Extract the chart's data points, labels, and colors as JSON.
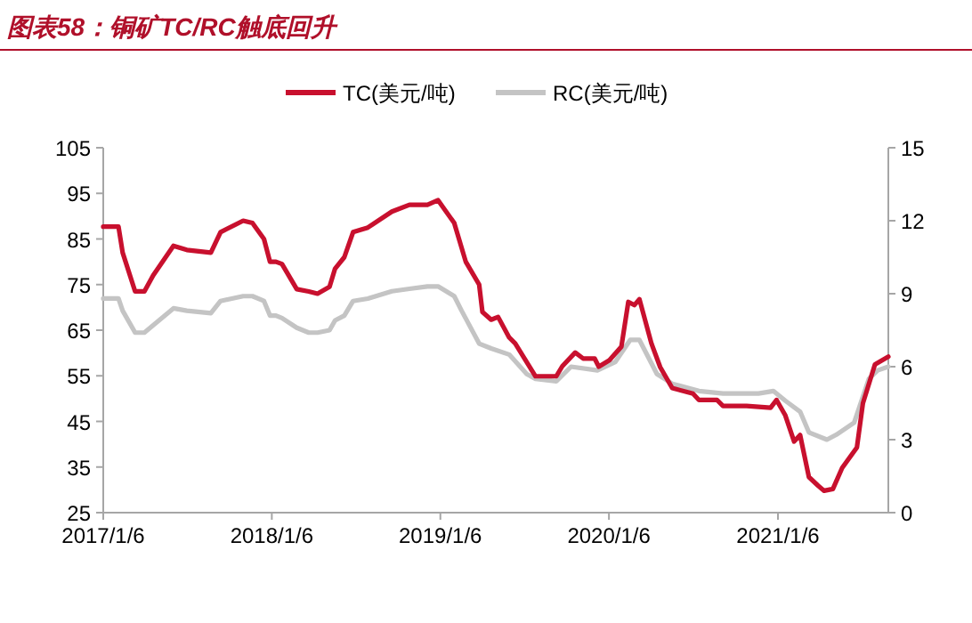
{
  "chart_data": {
    "type": "line",
    "title": "图表58：铜矿TC/RC触底回升",
    "legend": "top",
    "grid": false,
    "marker": "none",
    "line_style": "solid",
    "xlim": [
      "2017-01-06",
      "2021-09-02"
    ],
    "xticks": [
      {
        "value": "2017-01-06",
        "label": "2017/1/6"
      },
      {
        "value": "2018-01-06",
        "label": "2018/1/6"
      },
      {
        "value": "2019-01-06",
        "label": "2019/1/6"
      },
      {
        "value": "2020-01-06",
        "label": "2020/1/6"
      },
      {
        "value": "2021-01-06",
        "label": "2021/1/6"
      }
    ],
    "ylim": [
      25,
      105
    ],
    "yticks": [
      25,
      35,
      45,
      55,
      65,
      75,
      85,
      95,
      105
    ],
    "y2lim": [
      0,
      15
    ],
    "y2ticks": [
      0,
      3,
      6,
      9,
      12,
      15
    ],
    "series": [
      {
        "name": "TC(美元/吨)",
        "color": "#c8102e",
        "x": [
          "2017-01-06",
          "2017-02-08",
          "2017-02-17",
          "2017-03-16",
          "2017-04-05",
          "2017-04-24",
          "2017-06-07",
          "2017-07-06",
          "2017-08-27",
          "2017-09-17",
          "2017-11-05",
          "2017-11-25",
          "2017-12-20",
          "2018-01-02",
          "2018-01-15",
          "2018-01-28",
          "2018-03-01",
          "2018-03-27",
          "2018-04-15",
          "2018-05-11",
          "2018-05-23",
          "2018-06-12",
          "2018-07-01",
          "2018-08-02",
          "2018-09-23",
          "2018-10-31",
          "2018-12-09",
          "2019-01-01",
          "2019-02-05",
          "2019-03-02",
          "2019-03-31",
          "2019-04-07",
          "2019-04-26",
          "2019-05-11",
          "2019-06-04",
          "2019-06-17",
          "2019-07-31",
          "2019-09-14",
          "2019-09-27",
          "2019-10-25",
          "2019-11-11",
          "2019-12-06",
          "2019-12-15",
          "2020-01-07",
          "2020-02-02",
          "2020-02-17",
          "2020-03-01",
          "2020-03-12",
          "2020-04-07",
          "2020-04-26",
          "2020-05-22",
          "2020-07-06",
          "2020-07-19",
          "2020-08-27",
          "2020-09-09",
          "2020-10-30",
          "2020-12-21",
          "2021-01-03",
          "2021-01-22",
          "2021-02-10",
          "2021-02-23",
          "2021-03-14",
          "2021-04-03",
          "2021-04-16",
          "2021-05-05",
          "2021-05-25",
          "2021-06-26",
          "2021-07-09",
          "2021-08-04",
          "2021-09-02"
        ],
        "values": [
          87.7,
          87.7,
          82,
          73.5,
          73.5,
          77,
          83.5,
          82.6,
          82,
          86.5,
          89,
          88.5,
          85,
          80,
          80,
          79.5,
          74,
          73.5,
          73,
          74.5,
          78.5,
          81,
          86.5,
          87.5,
          91,
          92.5,
          92.5,
          93.5,
          88.5,
          80,
          75,
          69,
          67.3,
          67.9,
          63.4,
          62.1,
          54.9,
          54.9,
          57.1,
          60.1,
          58.8,
          58.8,
          57,
          58.4,
          61.4,
          71.2,
          70.5,
          71.8,
          62.1,
          56.9,
          52.3,
          51.1,
          49.7,
          49.7,
          48.4,
          48.4,
          48,
          49.7,
          46.3,
          40.6,
          42,
          32.8,
          30.9,
          29.8,
          30.2,
          34.8,
          39.3,
          49,
          57.5,
          59.2
        ]
      },
      {
        "name": "RC(美元/吨)",
        "color": "#c4c4c4",
        "axis": "y2",
        "x": [
          "2017-01-06",
          "2017-02-08",
          "2017-02-17",
          "2017-03-16",
          "2017-04-05",
          "2017-04-24",
          "2017-06-07",
          "2017-07-06",
          "2017-08-27",
          "2017-09-17",
          "2017-11-05",
          "2017-11-25",
          "2017-12-20",
          "2018-01-02",
          "2018-01-15",
          "2018-01-28",
          "2018-03-01",
          "2018-03-27",
          "2018-04-15",
          "2018-05-11",
          "2018-05-23",
          "2018-06-12",
          "2018-07-01",
          "2018-08-02",
          "2018-09-23",
          "2018-10-31",
          "2018-12-09",
          "2019-01-01",
          "2019-02-05",
          "2019-02-21",
          "2019-03-31",
          "2019-04-26",
          "2019-06-04",
          "2019-07-12",
          "2019-07-31",
          "2019-09-14",
          "2019-10-16",
          "2019-12-12",
          "2020-01-20",
          "2020-02-21",
          "2020-03-12",
          "2020-04-19",
          "2020-05-22",
          "2020-07-19",
          "2020-09-09",
          "2020-11-25",
          "2020-12-27",
          "2021-01-22",
          "2021-02-23",
          "2021-03-14",
          "2021-04-22",
          "2021-05-12",
          "2021-06-20",
          "2021-07-22",
          "2021-08-10",
          "2021-09-02"
        ],
        "values": [
          8.8,
          8.8,
          8.3,
          7.4,
          7.4,
          7.7,
          8.4,
          8.3,
          8.2,
          8.7,
          8.9,
          8.9,
          8.7,
          8.1,
          8.1,
          8.0,
          7.6,
          7.4,
          7.4,
          7.5,
          7.9,
          8.1,
          8.7,
          8.8,
          9.1,
          9.2,
          9.3,
          9.3,
          8.9,
          8.3,
          6.95,
          6.75,
          6.5,
          5.7,
          5.5,
          5.4,
          6.0,
          5.85,
          6.2,
          7.1,
          7.1,
          5.7,
          5.3,
          5.0,
          4.9,
          4.9,
          5.0,
          4.6,
          4.15,
          3.3,
          3.0,
          3.2,
          3.7,
          5.5,
          5.85,
          6.0
        ]
      }
    ]
  }
}
